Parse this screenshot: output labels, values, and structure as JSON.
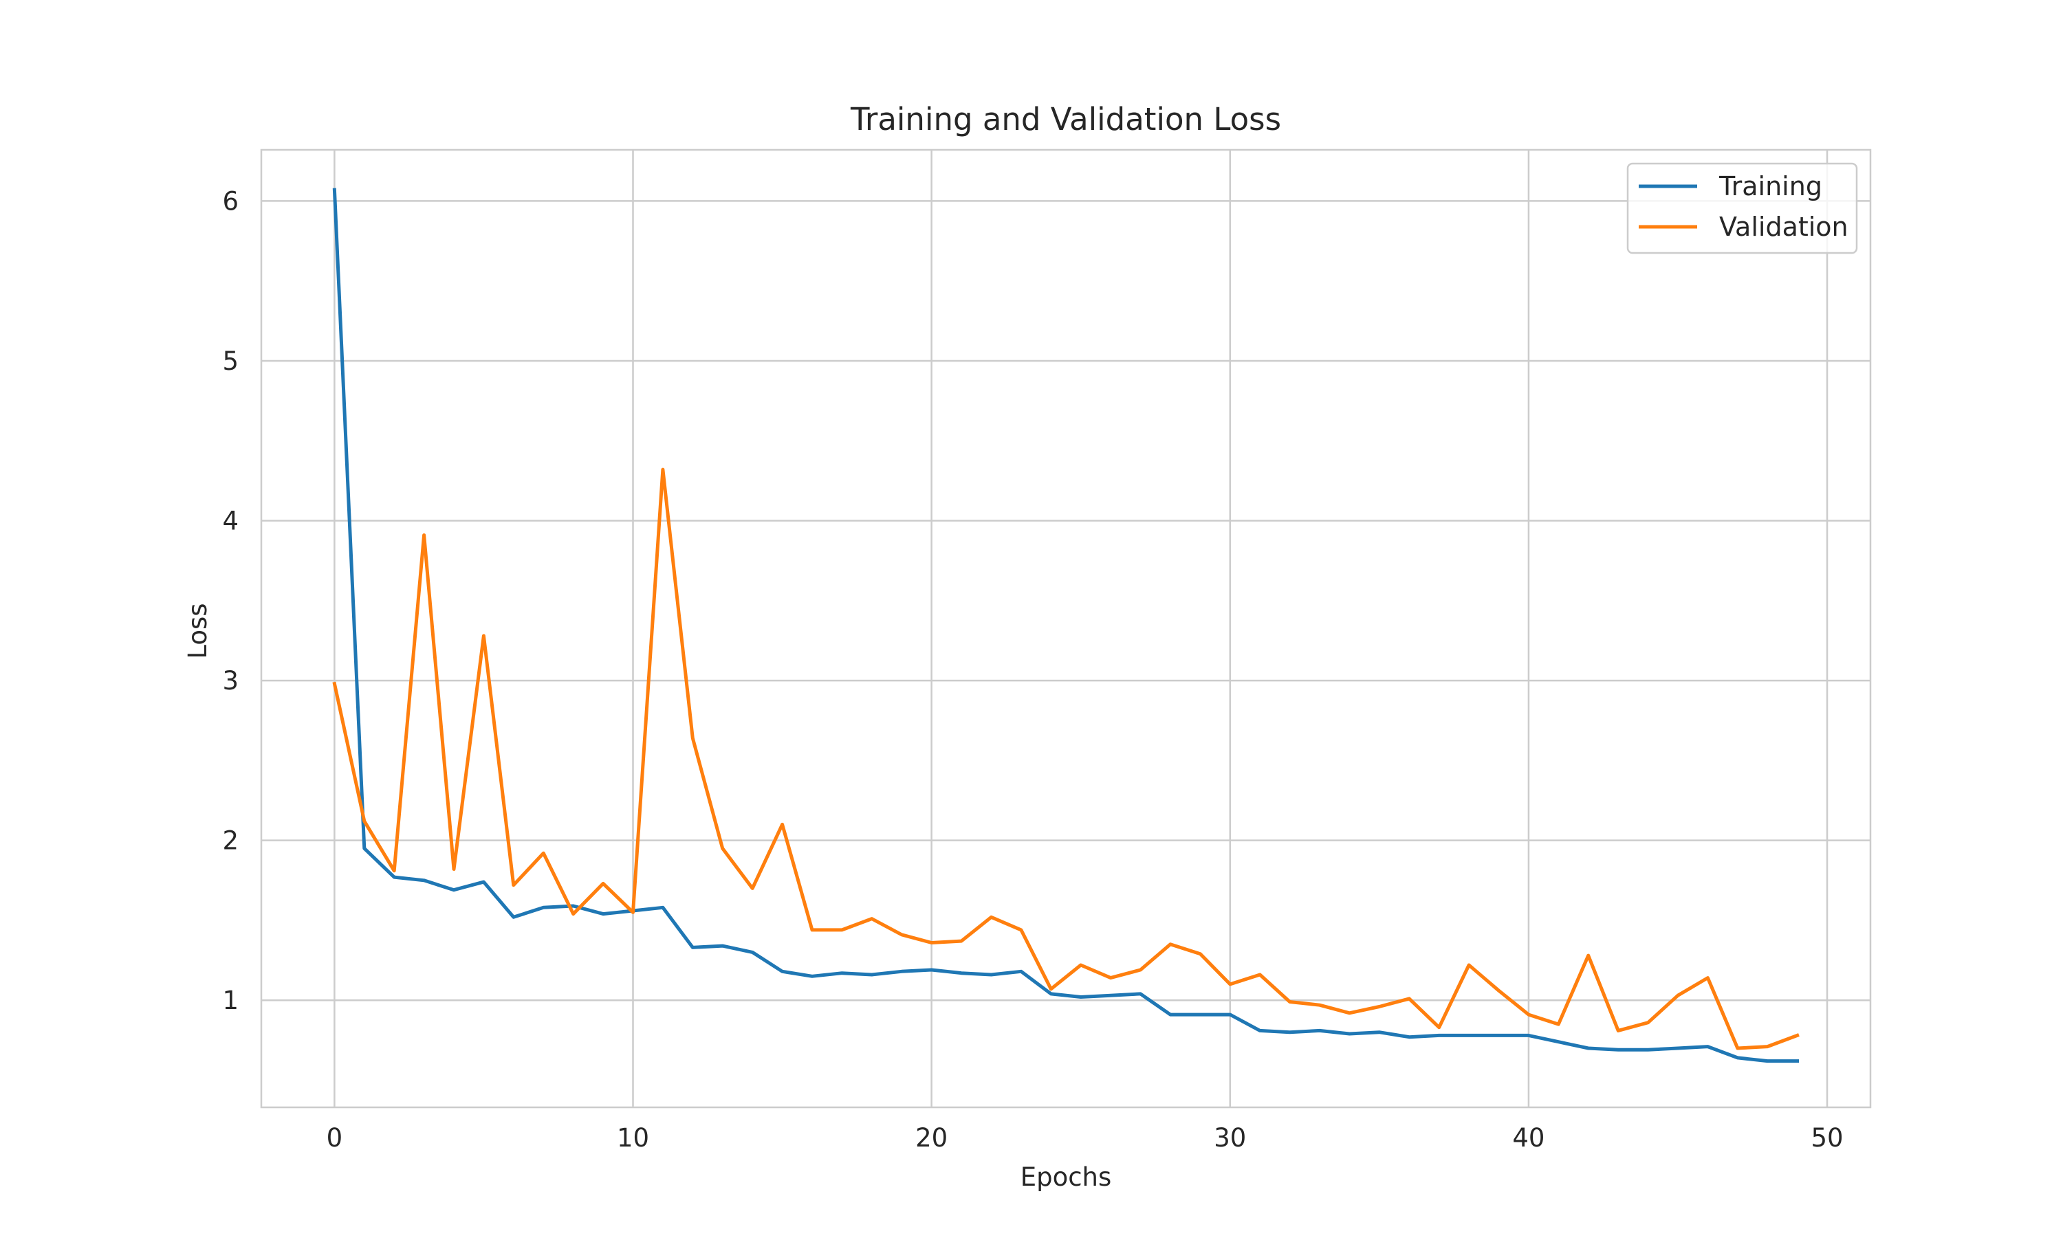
{
  "chart_data": {
    "type": "line",
    "title": "Training and Validation Loss",
    "xlabel": "Epochs",
    "ylabel": "Loss",
    "xlim": [
      -2.45,
      51.45
    ],
    "ylim": [
      0.33,
      6.32
    ],
    "xticks": [
      0,
      10,
      20,
      30,
      40,
      50
    ],
    "yticks": [
      1,
      2,
      3,
      4,
      5,
      6
    ],
    "grid": true,
    "legend_position": "top-right",
    "x": [
      0,
      1,
      2,
      3,
      4,
      5,
      6,
      7,
      8,
      9,
      10,
      11,
      12,
      13,
      14,
      15,
      16,
      17,
      18,
      19,
      20,
      21,
      22,
      23,
      24,
      25,
      26,
      27,
      28,
      29,
      30,
      31,
      32,
      33,
      34,
      35,
      36,
      37,
      38,
      39,
      40,
      41,
      42,
      43,
      44,
      45,
      46,
      47,
      48,
      49
    ],
    "series": [
      {
        "name": "Training",
        "color": "#1f77b4",
        "values": [
          6.07,
          1.95,
          1.77,
          1.75,
          1.69,
          1.74,
          1.52,
          1.58,
          1.59,
          1.54,
          1.56,
          1.58,
          1.33,
          1.34,
          1.3,
          1.18,
          1.15,
          1.17,
          1.16,
          1.18,
          1.19,
          1.17,
          1.16,
          1.18,
          1.04,
          1.02,
          1.03,
          1.04,
          0.91,
          0.91,
          0.91,
          0.81,
          0.8,
          0.81,
          0.79,
          0.8,
          0.77,
          0.78,
          0.78,
          0.78,
          0.78,
          0.74,
          0.7,
          0.69,
          0.69,
          0.7,
          0.71,
          0.64,
          0.62,
          0.62
        ]
      },
      {
        "name": "Validation",
        "color": "#ff7f0e",
        "values": [
          2.98,
          2.12,
          1.81,
          3.91,
          1.82,
          3.28,
          1.72,
          1.92,
          1.54,
          1.73,
          1.55,
          4.32,
          2.64,
          1.95,
          1.7,
          2.1,
          1.44,
          1.44,
          1.51,
          1.41,
          1.36,
          1.37,
          1.52,
          1.44,
          1.07,
          1.22,
          1.14,
          1.19,
          1.35,
          1.29,
          1.1,
          1.16,
          0.99,
          0.97,
          0.92,
          0.96,
          1.01,
          0.83,
          1.22,
          1.06,
          0.91,
          0.85,
          1.28,
          0.81,
          0.86,
          1.03,
          1.14,
          0.7,
          0.71,
          0.78
        ]
      }
    ]
  }
}
